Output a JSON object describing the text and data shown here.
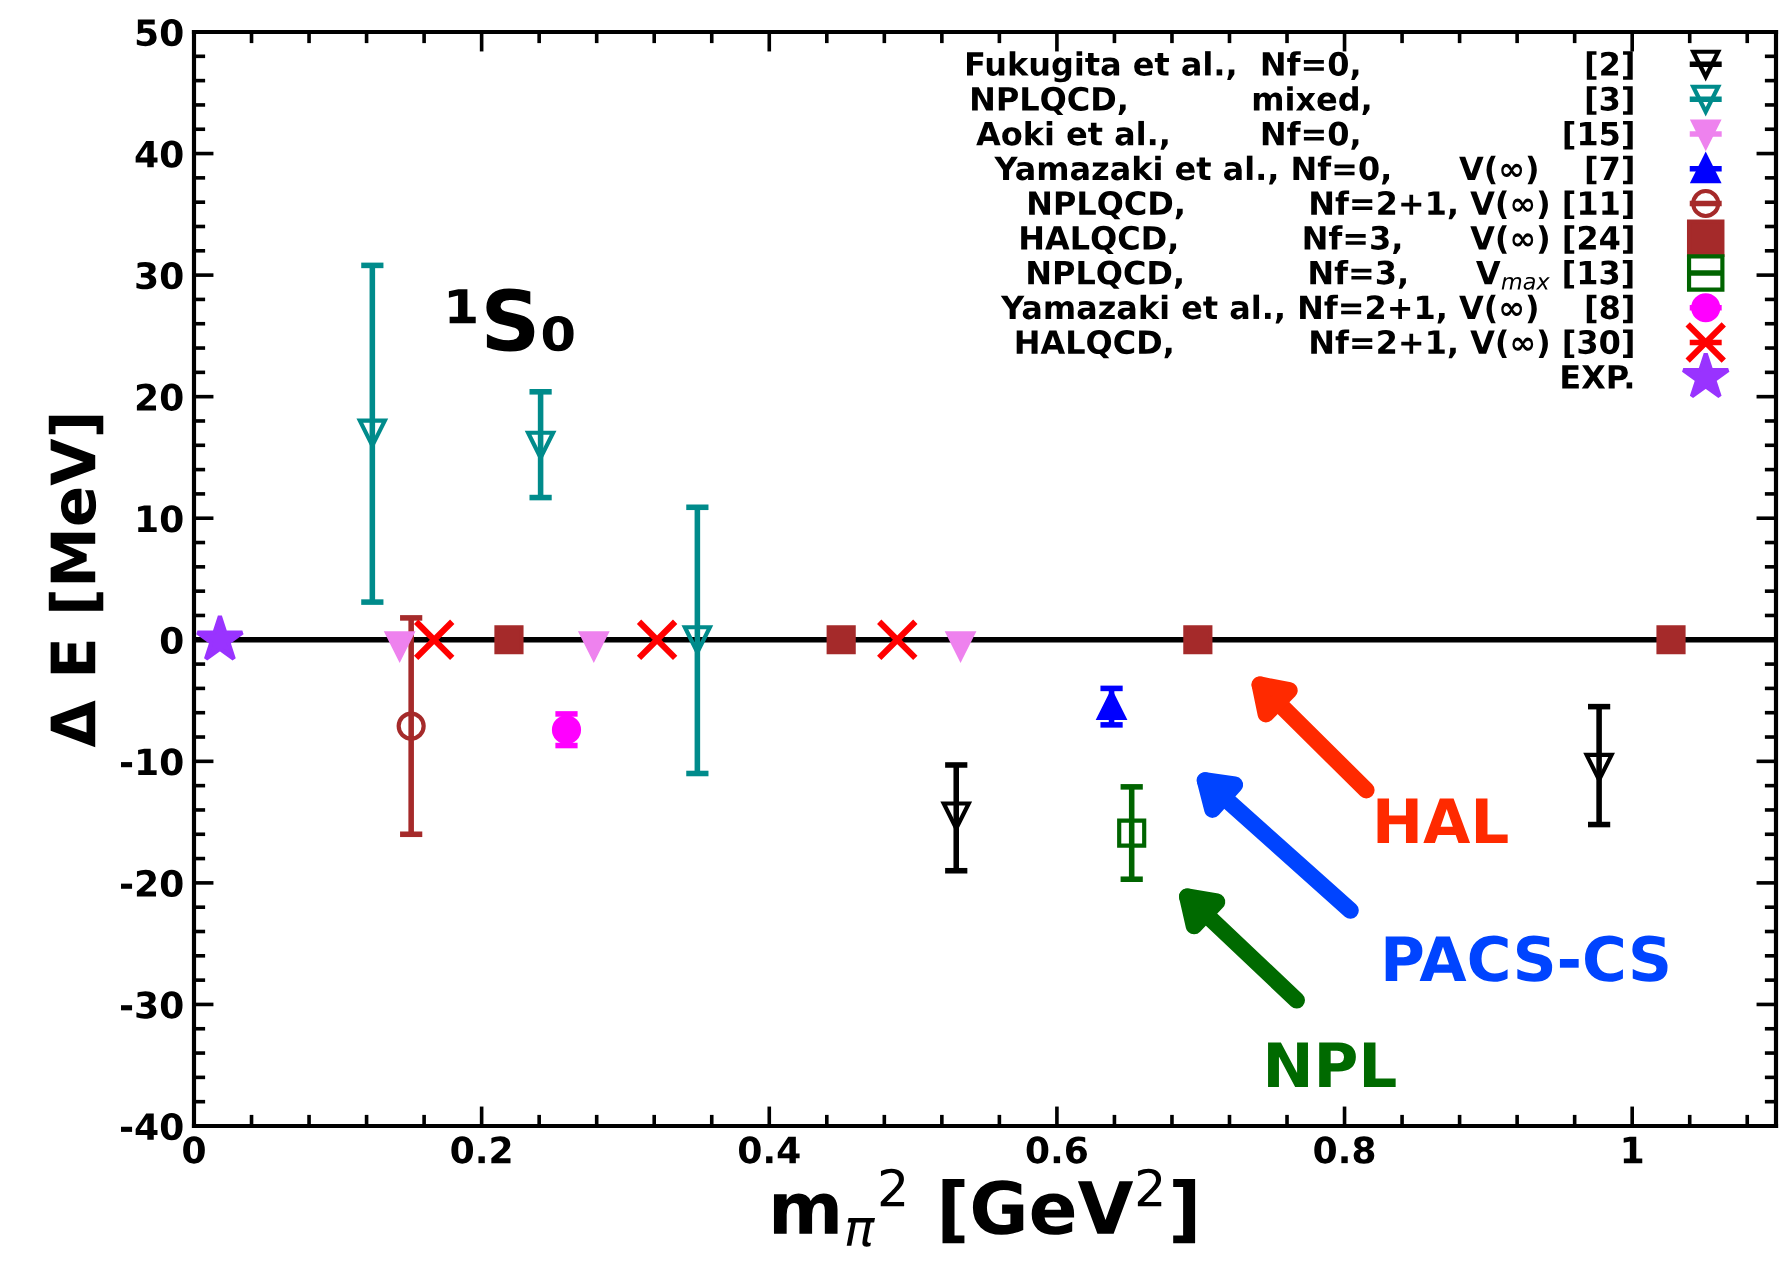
{
  "chart_data": {
    "type": "scatter",
    "title": "¹S₀",
    "xlabel": "m$_{π}$$^{2}$ [GeV$^{2}$]",
    "ylabel": "Δ E [MeV]",
    "xlim": [
      0,
      1.1
    ],
    "xticks": [
      0,
      0.2,
      0.4,
      0.6,
      0.8,
      1
    ],
    "ylim": [
      -40,
      50
    ],
    "yticks": [
      -40,
      -30,
      -20,
      -10,
      0,
      10,
      20,
      30,
      40,
      50
    ],
    "grid": false,
    "legend": "top right",
    "ref_lines": [
      {
        "axis": "y",
        "value": 0,
        "color": "#000000",
        "line_style": "solid"
      }
    ],
    "series": [
      {
        "name": "Fukugita et al.,  Nf=0,                    [2]",
        "color": "#000000",
        "marker": "triangle_down",
        "x": [
          0.53,
          0.977
        ],
        "values": [
          -14.5,
          -10.5
        ],
        "errors": [
          [
            -19,
            -10.3
          ],
          [
            -15.2,
            -5.5
          ]
        ]
      },
      {
        "name": "NPLQCD,           mixed,                   [3]",
        "color": "#008b8b",
        "marker": "triangle_down",
        "x": [
          0.124,
          0.241,
          0.35
        ],
        "values": [
          17,
          16,
          0
        ],
        "errors": [
          [
            3.1,
            30.8
          ],
          [
            11.7,
            20.4
          ],
          [
            -11,
            10.9
          ]
        ]
      },
      {
        "name": "Aoki et al.,        Nf=0,                  [15]",
        "color": "#ee82ee",
        "marker": "triangle_down",
        "x": [
          0.143,
          0.278,
          0.533
        ],
        "values": [
          -0.5,
          -0.5,
          -0.5
        ]
      },
      {
        "name": "Yamazaki et al., Nf=0,      V(∞)    [7]",
        "color": "#0000ff",
        "marker": "triangle",
        "x": [
          0.638
        ],
        "values": [
          -5.4
        ],
        "errors": [
          [
            -7,
            -4
          ]
        ]
      },
      {
        "name": "NPLQCD,           Nf=2+1, V(∞) [11]",
        "color": "#a52a2a",
        "marker": "circle",
        "x": [
          0.151
        ],
        "values": [
          -7.1
        ],
        "errors": [
          [
            -16,
            1.8
          ]
        ]
      },
      {
        "name": "HALQCD,           Nf=3,      V(∞) [24]",
        "color": "#a52a2a",
        "marker": "square",
        "x": [
          0.219,
          0.45,
          0.698,
          1.027
        ],
        "values": [
          0,
          0,
          0,
          0
        ]
      },
      {
        "name": "NPLQCD,           Nf=3,      V$_{max}$ [13]",
        "color": "#006400",
        "marker": "square",
        "x": [
          0.652
        ],
        "values": [
          -15.9
        ],
        "errors": [
          [
            -19.7,
            -12.1
          ]
        ]
      },
      {
        "name": "Yamazaki et al., Nf=2+1, V(∞)    [8]",
        "color": "#ff00ff",
        "marker": "circle",
        "x": [
          0.259
        ],
        "values": [
          -7.4
        ],
        "errors": [
          [
            -8.7,
            -6.1
          ]
        ]
      },
      {
        "name": "HALQCD,            Nf=2+1, V(∞) [30]",
        "color": "#ff0000",
        "marker": "cross",
        "x": [
          0.167,
          0.322,
          0.489
        ],
        "values": [
          0,
          0,
          0
        ]
      },
      {
        "name": "EXP.",
        "color": "#9933ff",
        "marker": "star",
        "x": [
          0.018
        ],
        "values": [
          0
        ]
      }
    ],
    "annotations": [
      "HAL",
      "PACS-CS",
      "NPL"
    ]
  }
}
